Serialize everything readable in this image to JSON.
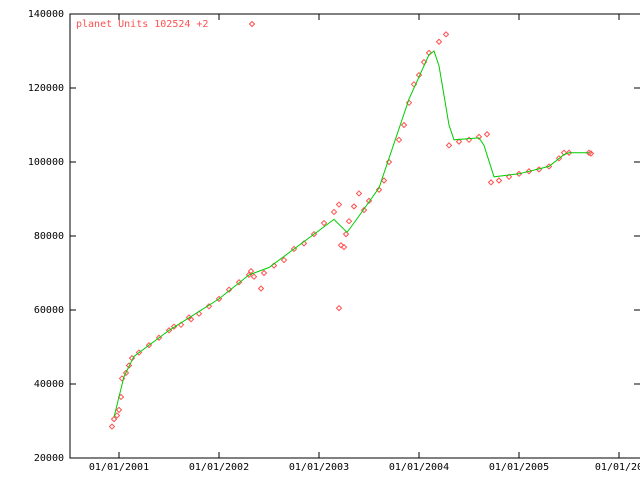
{
  "chart_data": {
    "type": "line",
    "legend_loc": "upper left",
    "xlim": [
      2000.51,
      2006.21
    ],
    "xticks": [
      {
        "value": 2001,
        "label": "01/01/2001"
      },
      {
        "value": 2002,
        "label": "01/01/2002"
      },
      {
        "value": 2003,
        "label": "01/01/2003"
      },
      {
        "value": 2004,
        "label": "01/01/2004"
      },
      {
        "value": 2005,
        "label": "01/01/2005"
      },
      {
        "value": 2006,
        "label": "01/01/20"
      }
    ],
    "ylim": [
      20000,
      140000
    ],
    "yticks": [
      20000,
      40000,
      60000,
      80000,
      100000,
      120000,
      140000
    ],
    "series": [
      {
        "name": "planet Units 102524 +2",
        "color": "#ff5050",
        "marker": "diamond",
        "x": [
          2000.93,
          2000.95,
          2000.98,
          2001.0,
          2001.02,
          2001.03,
          2001.07,
          2001.1,
          2001.13,
          2001.2,
          2001.3,
          2001.4,
          2001.5,
          2001.55,
          2001.62,
          2001.7,
          2001.72,
          2001.8,
          2001.9,
          2002.0,
          2002.1,
          2002.2,
          2002.3,
          2002.32,
          2002.35,
          2002.42,
          2002.45,
          2002.55,
          2002.65,
          2002.75,
          2002.85,
          2002.95,
          2003.05,
          2003.15,
          2003.2,
          2003.2,
          2003.22,
          2003.25,
          2003.27,
          2003.3,
          2003.35,
          2003.4,
          2003.45,
          2003.5,
          2003.6,
          2003.65,
          2003.7,
          2003.8,
          2003.85,
          2003.9,
          2003.95,
          2004.0,
          2004.05,
          2004.1,
          2004.2,
          2004.27,
          2004.3,
          2004.4,
          2004.5,
          2004.6,
          2004.68,
          2004.72,
          2004.8,
          2004.9,
          2005.0,
          2005.1,
          2005.2,
          2005.3,
          2005.4,
          2005.45,
          2005.5,
          2005.7,
          2005.72
        ],
        "values": [
          28500,
          30500,
          31500,
          33000,
          36500,
          41500,
          43000,
          45000,
          47000,
          48500,
          50500,
          52500,
          54500,
          55500,
          56000,
          58000,
          57500,
          59000,
          61000,
          63000,
          65500,
          67500,
          69500,
          70500,
          69000,
          65800,
          70000,
          72000,
          73500,
          76500,
          78000,
          80500,
          83500,
          86500,
          88500,
          60500,
          77500,
          77000,
          80500,
          84000,
          88000,
          91500,
          87000,
          89500,
          92500,
          95000,
          100000,
          106000,
          110000,
          116000,
          121000,
          123500,
          127000,
          129500,
          132500,
          134500,
          104500,
          105500,
          106000,
          106800,
          107500,
          94500,
          95000,
          96000,
          96800,
          97500,
          98000,
          98800,
          101000,
          102500,
          102500,
          102500,
          102300
        ]
      },
      {
        "color": "#00cc00",
        "marker": "none",
        "x": [
          2000.95,
          2001.05,
          2001.15,
          2001.5,
          2002.0,
          2002.3,
          2002.5,
          2003.0,
          2003.15,
          2003.28,
          2003.35,
          2003.6,
          2003.9,
          2004.1,
          2004.15,
          2004.2,
          2004.3,
          2004.35,
          2004.6,
          2004.65,
          2004.75,
          2005.0,
          2005.3,
          2005.45,
          2005.5,
          2005.7
        ],
        "values": [
          31000,
          42000,
          47500,
          54500,
          63000,
          69500,
          71500,
          81500,
          84500,
          81000,
          83500,
          93000,
          117000,
          129000,
          130000,
          126000,
          110000,
          106000,
          106500,
          104500,
          96000,
          96800,
          98800,
          102000,
          102500,
          102500
        ]
      }
    ]
  }
}
